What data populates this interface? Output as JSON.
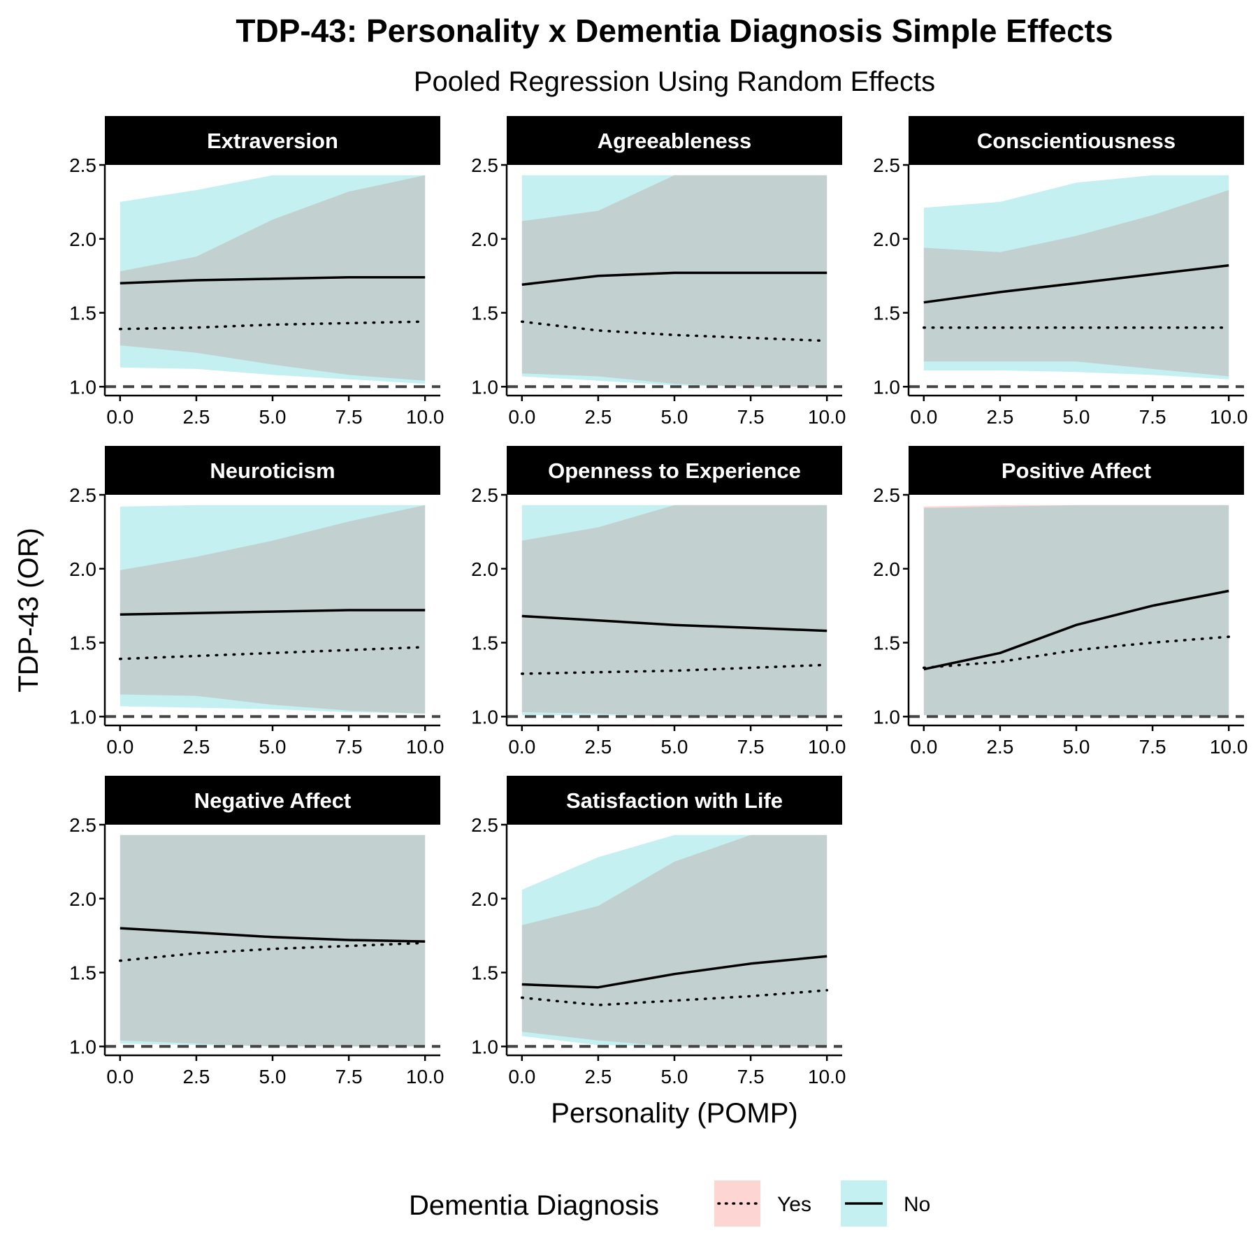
{
  "title": "TDP-43: Personality x Dementia Diagnosis Simple Effects",
  "subtitle": "Pooled Regression Using Random Effects",
  "xlabel": "Personality (POMP)",
  "ylabel": "TDP-43 (OR)",
  "legend": {
    "title": "Dementia Diagnosis",
    "items": [
      {
        "label": "Yes",
        "linetype": "dotted",
        "fill": "#F8766D"
      },
      {
        "label": "No",
        "linetype": "solid",
        "fill": "#00BFC4"
      }
    ]
  },
  "colors": {
    "yes_ribbon": "#F8766D",
    "no_ribbon": "#00BFC4",
    "line": "#000000",
    "reference": "#444444",
    "strip": "#000000"
  },
  "chart_data": {
    "type": "line",
    "facet_grid": "3x3",
    "xlim": [
      -0.5,
      10.5
    ],
    "ylim": [
      0.94,
      2.5
    ],
    "x_ticks": [
      "0.0",
      "2.5",
      "5.0",
      "7.5",
      "10.0"
    ],
    "y_ticks": [
      "1.0",
      "1.5",
      "2.0",
      "2.5"
    ],
    "x": [
      0,
      2.5,
      5,
      7.5,
      10
    ],
    "reference_line": 1.0,
    "ribbon_cap": 2.43,
    "panels": [
      {
        "name": "Extraversion",
        "yes": {
          "fit": [
            1.39,
            1.4,
            1.42,
            1.43,
            1.44
          ],
          "lower": [
            1.28,
            1.23,
            1.15,
            1.08,
            1.04
          ],
          "upper": [
            1.78,
            1.88,
            2.13,
            2.32,
            2.43
          ]
        },
        "no": {
          "fit": [
            1.7,
            1.72,
            1.73,
            1.74,
            1.74
          ],
          "lower": [
            1.13,
            1.12,
            1.08,
            1.05,
            1.02
          ],
          "upper": [
            2.25,
            2.33,
            2.43,
            2.43,
            2.43
          ]
        }
      },
      {
        "name": "Agreeableness",
        "yes": {
          "fit": [
            1.44,
            1.38,
            1.35,
            1.33,
            1.31
          ],
          "lower": [
            1.09,
            1.07,
            1.02,
            1.0,
            1.0
          ],
          "upper": [
            2.12,
            2.19,
            2.43,
            2.43,
            2.43
          ]
        },
        "no": {
          "fit": [
            1.69,
            1.75,
            1.77,
            1.77,
            1.77
          ],
          "lower": [
            1.07,
            1.04,
            1.01,
            1.0,
            1.0
          ],
          "upper": [
            2.43,
            2.43,
            2.43,
            2.43,
            2.43
          ]
        }
      },
      {
        "name": "Conscientiousness",
        "yes": {
          "fit": [
            1.4,
            1.4,
            1.4,
            1.4,
            1.4
          ],
          "lower": [
            1.17,
            1.17,
            1.17,
            1.12,
            1.07
          ],
          "upper": [
            1.94,
            1.91,
            2.02,
            2.16,
            2.33
          ]
        },
        "no": {
          "fit": [
            1.57,
            1.64,
            1.7,
            1.76,
            1.82
          ],
          "lower": [
            1.11,
            1.11,
            1.1,
            1.08,
            1.05
          ],
          "upper": [
            2.21,
            2.25,
            2.38,
            2.43,
            2.43
          ]
        }
      },
      {
        "name": "Neuroticism",
        "yes": {
          "fit": [
            1.39,
            1.41,
            1.43,
            1.45,
            1.47
          ],
          "lower": [
            1.15,
            1.14,
            1.08,
            1.04,
            1.02
          ],
          "upper": [
            1.99,
            2.08,
            2.19,
            2.32,
            2.43
          ]
        },
        "no": {
          "fit": [
            1.69,
            1.7,
            1.71,
            1.72,
            1.72
          ],
          "lower": [
            1.07,
            1.06,
            1.05,
            1.03,
            1.02
          ],
          "upper": [
            2.42,
            2.43,
            2.43,
            2.43,
            2.43
          ]
        }
      },
      {
        "name": "Openness to Experience",
        "yes": {
          "fit": [
            1.29,
            1.3,
            1.31,
            1.33,
            1.35
          ],
          "lower": [
            1.03,
            1.02,
            1.0,
            1.0,
            1.0
          ],
          "upper": [
            2.19,
            2.28,
            2.43,
            2.43,
            2.43
          ]
        },
        "no": {
          "fit": [
            1.68,
            1.65,
            1.62,
            1.6,
            1.58
          ],
          "lower": [
            1.01,
            1.01,
            1.0,
            1.0,
            1.0
          ],
          "upper": [
            2.43,
            2.43,
            2.43,
            2.43,
            2.43
          ]
        }
      },
      {
        "name": "Positive Affect",
        "yes": {
          "fit": [
            1.33,
            1.37,
            1.45,
            1.5,
            1.54
          ],
          "lower": [
            1.01,
            1.01,
            1.0,
            1.0,
            1.0
          ],
          "upper": [
            2.42,
            2.43,
            2.43,
            2.43,
            2.43
          ]
        },
        "no": {
          "fit": [
            1.32,
            1.43,
            1.62,
            1.75,
            1.85
          ],
          "lower": [
            1.01,
            1.01,
            1.0,
            1.0,
            1.0
          ],
          "upper": [
            2.41,
            2.42,
            2.43,
            2.43,
            2.43
          ]
        }
      },
      {
        "name": "Negative Affect",
        "yes": {
          "fit": [
            1.58,
            1.63,
            1.66,
            1.68,
            1.7
          ],
          "lower": [
            1.04,
            1.02,
            1.0,
            1.0,
            1.0
          ],
          "upper": [
            2.43,
            2.43,
            2.43,
            2.43,
            2.43
          ]
        },
        "no": {
          "fit": [
            1.8,
            1.77,
            1.74,
            1.72,
            1.71
          ],
          "lower": [
            1.02,
            1.01,
            1.0,
            1.0,
            1.0
          ],
          "upper": [
            2.43,
            2.43,
            2.43,
            2.43,
            2.43
          ]
        }
      },
      {
        "name": "Satisfaction with Life",
        "yes": {
          "fit": [
            1.33,
            1.28,
            1.31,
            1.34,
            1.38
          ],
          "lower": [
            1.1,
            1.04,
            1.0,
            1.0,
            1.0
          ],
          "upper": [
            1.82,
            1.95,
            2.25,
            2.43,
            2.43
          ]
        },
        "no": {
          "fit": [
            1.42,
            1.4,
            1.49,
            1.56,
            1.61
          ],
          "lower": [
            1.07,
            1.01,
            1.0,
            1.0,
            1.0
          ],
          "upper": [
            2.06,
            2.28,
            2.43,
            2.43,
            2.43
          ]
        }
      }
    ]
  }
}
